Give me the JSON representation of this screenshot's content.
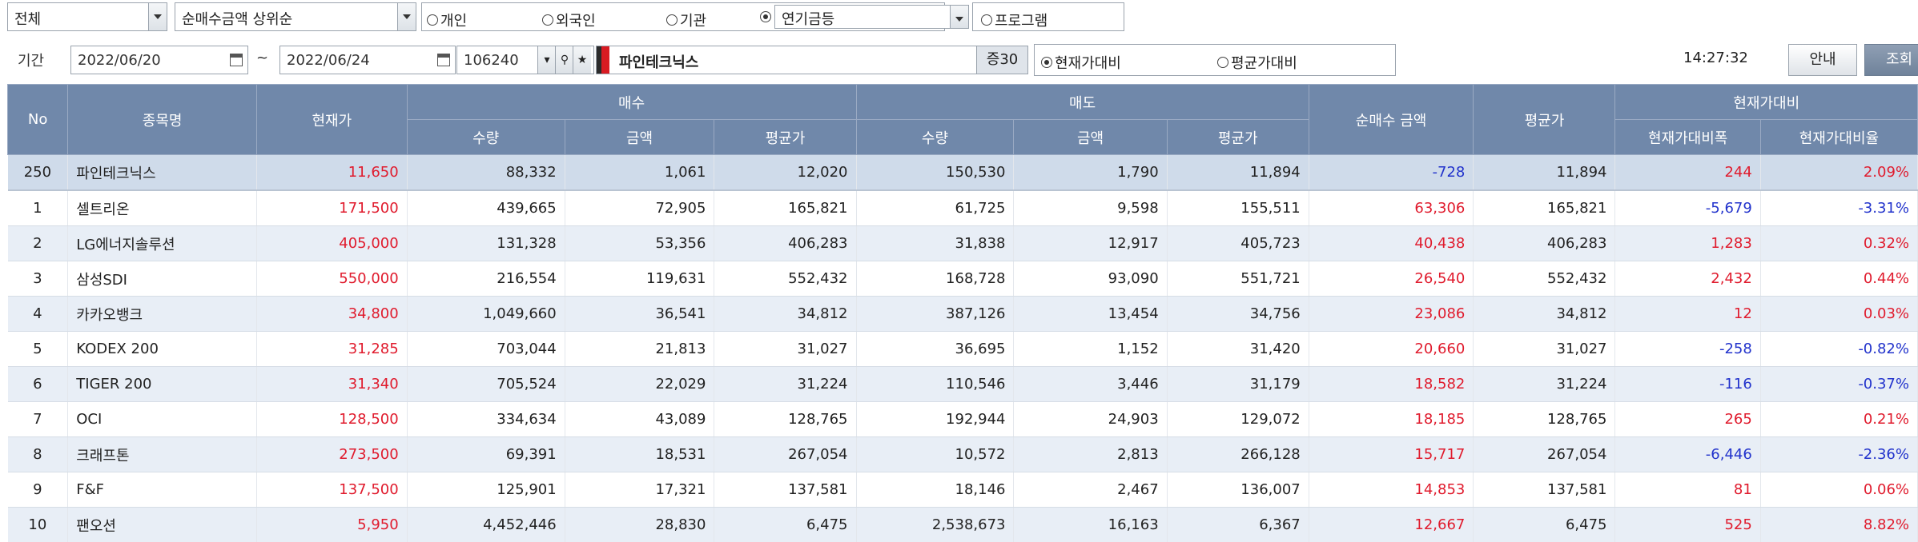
{
  "toolbar": {
    "market_select": "전체",
    "sort_select": "순매수금액 상위순",
    "investor_options": [
      "개인",
      "외국인",
      "기관"
    ],
    "pension_select": "연기금등",
    "program_option": "프로그램",
    "period_label": "기간",
    "date_from": "2022/06/20",
    "date_sep": "~",
    "date_to": "2022/06/24",
    "stock_code": "106240",
    "stock_name": "파인테크닉스",
    "margin_badge": "증30",
    "compare_current": "현재가대비",
    "compare_average": "평균가대비",
    "time": "14:27:32",
    "guide_button": "안내",
    "search_button": "조회"
  },
  "table": {
    "headers": {
      "no": "No",
      "name": "종목명",
      "price": "현재가",
      "buy_group": "매수",
      "sell_group": "매도",
      "net_buy": "순매수 금액",
      "avg": "평균가",
      "vs_group": "현재가대비",
      "qty": "수량",
      "amount": "금액",
      "avg_price": "평균가",
      "vs_diff": "현재가대비폭",
      "vs_rate": "현재가대비율"
    },
    "rows": [
      {
        "no": "250",
        "name": "파인테크닉스",
        "price": "11,650",
        "buy_qty": "88,332",
        "buy_amt": "1,061",
        "buy_avg": "12,020",
        "sell_qty": "150,530",
        "sell_amt": "1,790",
        "sell_avg": "11,894",
        "net": "-728",
        "avg": "11,894",
        "diff": "244",
        "rate": "2.09%"
      },
      {
        "no": "1",
        "name": "셀트리온",
        "price": "171,500",
        "buy_qty": "439,665",
        "buy_amt": "72,905",
        "buy_avg": "165,821",
        "sell_qty": "61,725",
        "sell_amt": "9,598",
        "sell_avg": "155,511",
        "net": "63,306",
        "avg": "165,821",
        "diff": "-5,679",
        "rate": "-3.31%"
      },
      {
        "no": "2",
        "name": "LG에너지솔루션",
        "price": "405,000",
        "buy_qty": "131,328",
        "buy_amt": "53,356",
        "buy_avg": "406,283",
        "sell_qty": "31,838",
        "sell_amt": "12,917",
        "sell_avg": "405,723",
        "net": "40,438",
        "avg": "406,283",
        "diff": "1,283",
        "rate": "0.32%"
      },
      {
        "no": "3",
        "name": "삼성SDI",
        "price": "550,000",
        "buy_qty": "216,554",
        "buy_amt": "119,631",
        "buy_avg": "552,432",
        "sell_qty": "168,728",
        "sell_amt": "93,090",
        "sell_avg": "551,721",
        "net": "26,540",
        "avg": "552,432",
        "diff": "2,432",
        "rate": "0.44%"
      },
      {
        "no": "4",
        "name": "카카오뱅크",
        "price": "34,800",
        "buy_qty": "1,049,660",
        "buy_amt": "36,541",
        "buy_avg": "34,812",
        "sell_qty": "387,126",
        "sell_amt": "13,454",
        "sell_avg": "34,756",
        "net": "23,086",
        "avg": "34,812",
        "diff": "12",
        "rate": "0.03%"
      },
      {
        "no": "5",
        "name": "KODEX 200",
        "price": "31,285",
        "buy_qty": "703,044",
        "buy_amt": "21,813",
        "buy_avg": "31,027",
        "sell_qty": "36,695",
        "sell_amt": "1,152",
        "sell_avg": "31,420",
        "net": "20,660",
        "avg": "31,027",
        "diff": "-258",
        "rate": "-0.82%"
      },
      {
        "no": "6",
        "name": "TIGER 200",
        "price": "31,340",
        "buy_qty": "705,524",
        "buy_amt": "22,029",
        "buy_avg": "31,224",
        "sell_qty": "110,546",
        "sell_amt": "3,446",
        "sell_avg": "31,179",
        "net": "18,582",
        "avg": "31,224",
        "diff": "-116",
        "rate": "-0.37%"
      },
      {
        "no": "7",
        "name": "OCI",
        "price": "128,500",
        "buy_qty": "334,634",
        "buy_amt": "43,089",
        "buy_avg": "128,765",
        "sell_qty": "192,944",
        "sell_amt": "24,903",
        "sell_avg": "129,072",
        "net": "18,185",
        "avg": "128,765",
        "diff": "265",
        "rate": "0.21%"
      },
      {
        "no": "8",
        "name": "크래프톤",
        "price": "273,500",
        "buy_qty": "69,391",
        "buy_amt": "18,531",
        "buy_avg": "267,054",
        "sell_qty": "10,572",
        "sell_amt": "2,813",
        "sell_avg": "266,128",
        "net": "15,717",
        "avg": "267,054",
        "diff": "-6,446",
        "rate": "-2.36%"
      },
      {
        "no": "9",
        "name": "F&F",
        "price": "137,500",
        "buy_qty": "125,901",
        "buy_amt": "17,321",
        "buy_avg": "137,581",
        "sell_qty": "18,146",
        "sell_amt": "2,467",
        "sell_avg": "136,007",
        "net": "14,853",
        "avg": "137,581",
        "diff": "81",
        "rate": "0.06%"
      },
      {
        "no": "10",
        "name": "팬오션",
        "price": "5,950",
        "buy_qty": "4,452,446",
        "buy_amt": "28,830",
        "buy_avg": "6,475",
        "sell_qty": "2,538,673",
        "sell_amt": "16,163",
        "sell_avg": "6,367",
        "net": "12,667",
        "avg": "6,475",
        "diff": "525",
        "rate": "8.82%"
      }
    ]
  },
  "colors": {
    "header_bg": "#7088aa",
    "up": "#e01b2d",
    "down": "#2233cc",
    "row_alt": "#e8eef6",
    "pin_row": "#cfdbea"
  }
}
